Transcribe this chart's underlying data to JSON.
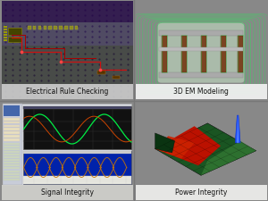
{
  "panels": [
    {
      "label": "Electrical Rule Checking"
    },
    {
      "label": "3D EM Modeling"
    },
    {
      "label": "Signal Integrity"
    },
    {
      "label": "Power Integrity"
    }
  ],
  "label_fontsize": 5.5,
  "fig_bg": "#888888",
  "border_color": "#888888"
}
